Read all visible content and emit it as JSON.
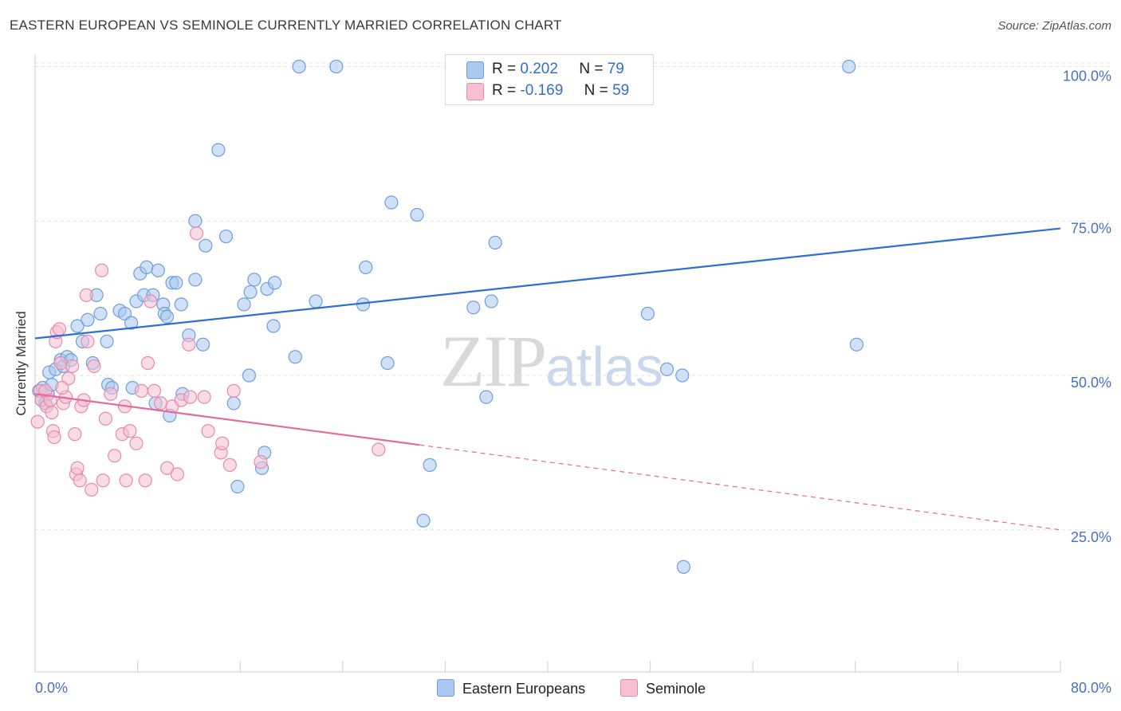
{
  "header": {
    "title": "EASTERN EUROPEAN VS SEMINOLE CURRENTLY MARRIED CORRELATION CHART",
    "source": "Source: ZipAtlas.com"
  },
  "watermark": {
    "zip": "ZIP",
    "atlas": "atlas"
  },
  "legend": {
    "rows": [
      {
        "r_label": "R =",
        "r_value": "0.202",
        "n_label": "N =",
        "n_value": "79"
      },
      {
        "r_label": "R =",
        "r_value": "-0.169",
        "n_label": "N =",
        "n_value": "59"
      }
    ]
  },
  "bottom_legend": [
    {
      "label": "Eastern Europeans"
    },
    {
      "label": "Seminole"
    }
  ],
  "colors": {
    "blue_fill": "#aac8f0",
    "blue_stroke": "#6f9fdc",
    "blue_line": "#2f6fd1",
    "pink_fill": "#f6bfd2",
    "pink_stroke": "#e88aab",
    "pink_line": "#e56b9a",
    "grid": "#e2e2e2",
    "tick_text": "#4472c4"
  },
  "chart_data": {
    "type": "scatter",
    "title": "EASTERN EUROPEAN VS SEMINOLE CURRENTLY MARRIED CORRELATION CHART",
    "xlabel": "",
    "ylabel": "Currently Married",
    "xlim": [
      0,
      80
    ],
    "ylim": [
      2,
      102
    ],
    "x_tick_labels": [
      "0.0%",
      "80.0%"
    ],
    "y_ticks": [
      {
        "value": 100,
        "label": "100.0%"
      },
      {
        "value": 75,
        "label": "75.0%"
      },
      {
        "value": 50,
        "label": "50.0%"
      },
      {
        "value": 25,
        "label": "25.0%"
      }
    ],
    "series": [
      {
        "name": "Eastern Europeans",
        "r": 0.202,
        "n": 79,
        "trend": {
          "x0": 0,
          "y0": 56.0,
          "x1": 80,
          "y1": 73.8,
          "dashed_from": null
        },
        "points": [
          [
            0.3,
            47.5
          ],
          [
            0.5,
            46.0
          ],
          [
            0.6,
            48.0
          ],
          [
            0.8,
            45.5
          ],
          [
            1.0,
            47.0
          ],
          [
            1.1,
            50.5
          ],
          [
            1.3,
            48.5
          ],
          [
            1.6,
            51.0
          ],
          [
            2.0,
            52.5
          ],
          [
            2.2,
            51.5
          ],
          [
            2.5,
            53.0
          ],
          [
            2.8,
            52.5
          ],
          [
            3.3,
            58.0
          ],
          [
            3.7,
            55.5
          ],
          [
            4.1,
            59.0
          ],
          [
            4.5,
            52.0
          ],
          [
            4.8,
            63.0
          ],
          [
            5.1,
            60.0
          ],
          [
            5.7,
            48.5
          ],
          [
            5.6,
            55.5
          ],
          [
            6.0,
            48.0
          ],
          [
            6.6,
            60.5
          ],
          [
            7.0,
            60.0
          ],
          [
            7.5,
            58.5
          ],
          [
            7.6,
            48.0
          ],
          [
            7.9,
            62.0
          ],
          [
            8.2,
            66.5
          ],
          [
            8.5,
            63.0
          ],
          [
            8.7,
            67.5
          ],
          [
            9.2,
            63.0
          ],
          [
            9.4,
            45.5
          ],
          [
            9.6,
            67.0
          ],
          [
            10.0,
            61.5
          ],
          [
            10.1,
            60.0
          ],
          [
            10.3,
            59.5
          ],
          [
            10.5,
            43.5
          ],
          [
            10.7,
            65.0
          ],
          [
            11.0,
            65.0
          ],
          [
            11.5,
            47.0
          ],
          [
            11.4,
            61.5
          ],
          [
            12.0,
            56.5
          ],
          [
            12.5,
            65.5
          ],
          [
            12.5,
            75.0
          ],
          [
            13.1,
            55.0
          ],
          [
            13.3,
            71.0
          ],
          [
            14.3,
            86.5
          ],
          [
            14.9,
            72.5
          ],
          [
            15.5,
            45.5
          ],
          [
            15.8,
            32.0
          ],
          [
            16.3,
            61.5
          ],
          [
            16.7,
            50.0
          ],
          [
            16.8,
            63.5
          ],
          [
            17.1,
            65.5
          ],
          [
            17.7,
            35.0
          ],
          [
            17.9,
            37.5
          ],
          [
            18.1,
            64.0
          ],
          [
            18.6,
            58.0
          ],
          [
            18.7,
            65.0
          ],
          [
            20.3,
            53.0
          ],
          [
            20.6,
            100.0
          ],
          [
            21.9,
            62.0
          ],
          [
            23.5,
            100.0
          ],
          [
            25.6,
            61.5
          ],
          [
            25.8,
            67.5
          ],
          [
            27.5,
            52.0
          ],
          [
            27.8,
            78.0
          ],
          [
            29.8,
            76.0
          ],
          [
            30.3,
            26.5
          ],
          [
            30.8,
            35.5
          ],
          [
            34.2,
            61.0
          ],
          [
            35.2,
            46.5
          ],
          [
            35.6,
            62.0
          ],
          [
            35.9,
            71.5
          ],
          [
            47.8,
            60.0
          ],
          [
            49.3,
            51.0
          ],
          [
            50.5,
            50.0
          ],
          [
            50.6,
            19.0
          ],
          [
            63.5,
            100.0
          ],
          [
            64.1,
            55.0
          ]
        ]
      },
      {
        "name": "Seminole",
        "r": -0.169,
        "n": 59,
        "trend": {
          "x0": 0,
          "y0": 47.0,
          "x1": 80,
          "y1": 25.0,
          "dashed_from": 30
        },
        "points": [
          [
            0.2,
            42.5
          ],
          [
            0.4,
            47.5
          ],
          [
            0.5,
            46.0
          ],
          [
            0.8,
            47.5
          ],
          [
            0.9,
            45.0
          ],
          [
            1.3,
            44.0
          ],
          [
            1.4,
            41.0
          ],
          [
            1.5,
            40.0
          ],
          [
            1.6,
            55.5
          ],
          [
            1.7,
            57.0
          ],
          [
            1.9,
            57.5
          ],
          [
            2.0,
            52.0
          ],
          [
            2.2,
            45.5
          ],
          [
            2.4,
            46.5
          ],
          [
            2.6,
            49.5
          ],
          [
            2.9,
            51.5
          ],
          [
            3.1,
            40.5
          ],
          [
            3.2,
            34.0
          ],
          [
            3.3,
            35.0
          ],
          [
            3.5,
            33.0
          ],
          [
            3.6,
            45.0
          ],
          [
            3.8,
            46.0
          ],
          [
            4.0,
            63.0
          ],
          [
            4.1,
            55.5
          ],
          [
            4.4,
            31.5
          ],
          [
            4.6,
            51.5
          ],
          [
            5.2,
            67.0
          ],
          [
            5.3,
            33.0
          ],
          [
            5.5,
            43.0
          ],
          [
            5.9,
            47.0
          ],
          [
            6.2,
            37.0
          ],
          [
            6.8,
            40.5
          ],
          [
            7.0,
            45.0
          ],
          [
            7.1,
            33.0
          ],
          [
            7.4,
            41.0
          ],
          [
            7.9,
            39.0
          ],
          [
            8.3,
            47.5
          ],
          [
            8.6,
            33.0
          ],
          [
            8.8,
            52.0
          ],
          [
            9.0,
            62.0
          ],
          [
            9.3,
            47.5
          ],
          [
            9.8,
            45.5
          ],
          [
            10.3,
            35.0
          ],
          [
            10.7,
            45.0
          ],
          [
            11.1,
            34.0
          ],
          [
            11.4,
            46.0
          ],
          [
            12.0,
            55.0
          ],
          [
            12.1,
            46.5
          ],
          [
            12.6,
            73.0
          ],
          [
            13.2,
            46.5
          ],
          [
            13.5,
            41.0
          ],
          [
            14.5,
            37.5
          ],
          [
            14.6,
            39.0
          ],
          [
            15.2,
            35.5
          ],
          [
            15.5,
            47.5
          ],
          [
            17.6,
            36.0
          ],
          [
            26.8,
            38.0
          ],
          [
            2.1,
            48.0
          ],
          [
            1.2,
            46.0
          ]
        ]
      }
    ]
  }
}
